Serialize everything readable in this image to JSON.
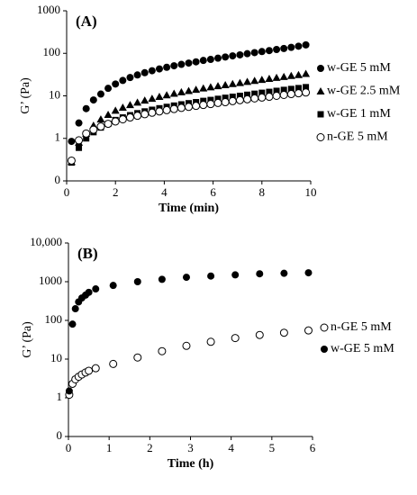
{
  "chart_data": [
    {
      "type": "scatter",
      "panel_label": "(A)",
      "xlabel": "Time (min)",
      "ylabel": "G’ (Pa)",
      "log_y": true,
      "xlim": [
        0,
        10
      ],
      "xticks": [
        0,
        2,
        4,
        6,
        8,
        10
      ],
      "ylim": [
        0.1,
        1000
      ],
      "yticks": [
        {
          "value": 0.1,
          "label": "0"
        },
        1,
        10,
        100,
        1000
      ],
      "legend": "right",
      "x": [
        0.2,
        0.5,
        0.8,
        1.1,
        1.4,
        1.7,
        2.0,
        2.3,
        2.6,
        2.9,
        3.2,
        3.5,
        3.8,
        4.1,
        4.4,
        4.7,
        5.0,
        5.3,
        5.6,
        5.9,
        6.2,
        6.5,
        6.8,
        7.1,
        7.4,
        7.7,
        8.0,
        8.3,
        8.6,
        8.9,
        9.2,
        9.5,
        9.8
      ],
      "series": [
        {
          "name": "w-GE 5 mM",
          "color": "#000000",
          "marker": "filled-circle",
          "values": [
            0.85,
            2.3,
            5,
            8,
            11,
            15,
            19,
            23,
            27,
            31,
            35,
            39,
            43,
            47,
            51,
            55,
            59,
            63,
            68,
            72,
            77,
            82,
            87,
            92,
            98,
            104,
            110,
            116,
            123,
            130,
            138,
            147,
            158
          ]
        },
        {
          "name": "w-GE 2.5 mM",
          "color": "#000000",
          "marker": "triangle",
          "values": [
            0.28,
            0.8,
            1.3,
            2,
            2.8,
            3.6,
            4.5,
            5.3,
            6.1,
            7,
            7.8,
            8.6,
            9.5,
            10.4,
            11.3,
            12.2,
            13.1,
            14,
            15,
            16,
            17,
            18,
            19.1,
            20.2,
            21.4,
            22.6,
            23.9,
            25.2,
            26.6,
            28,
            29.5,
            31,
            33
          ]
        },
        {
          "name": "w-GE 1 mM",
          "color": "#000000",
          "marker": "square",
          "values": [
            0.27,
            0.6,
            1.0,
            1.4,
            1.8,
            2.2,
            2.7,
            3.1,
            3.5,
            3.9,
            4.3,
            4.7,
            5.1,
            5.5,
            5.9,
            6.3,
            6.7,
            7.1,
            7.6,
            8.0,
            8.5,
            9,
            9.5,
            10,
            10.6,
            11.2,
            11.8,
            12.4,
            13.1,
            13.8,
            14.5,
            15.2,
            16
          ]
        },
        {
          "name": "n-GE 5 mM",
          "color": "#000000",
          "marker": "open-circle",
          "values": [
            0.3,
            0.9,
            1.3,
            1.6,
            1.9,
            2.2,
            2.5,
            2.8,
            3.1,
            3.4,
            3.7,
            4,
            4.3,
            4.6,
            4.9,
            5.2,
            5.5,
            5.8,
            6.1,
            6.4,
            6.8,
            7.1,
            7.5,
            7.9,
            8.3,
            8.7,
            9.1,
            9.5,
            10,
            10.5,
            11,
            11.5,
            12
          ]
        }
      ]
    },
    {
      "type": "scatter",
      "panel_label": "(B)",
      "xlabel": "Time (h)",
      "ylabel": "G’ (Pa)",
      "log_y": true,
      "xlim": [
        0,
        6
      ],
      "xticks": [
        0,
        1,
        2,
        3,
        4,
        5,
        6
      ],
      "ylim": [
        0.1,
        10000
      ],
      "yticks": [
        {
          "value": 0.1,
          "label": "0"
        },
        1,
        10,
        100,
        1000,
        {
          "value": 10000,
          "label": "10,000"
        }
      ],
      "legend": "right",
      "x": [
        0.02,
        0.1,
        0.17,
        0.25,
        0.33,
        0.42,
        0.5,
        0.67,
        1.1,
        1.7,
        2.3,
        2.9,
        3.5,
        4.1,
        4.7,
        5.3,
        5.9
      ],
      "series": [
        {
          "name": "n-GE 5 mM",
          "color": "#000000",
          "marker": "open-circle",
          "values": [
            1.2,
            2.3,
            3,
            3.5,
            4,
            4.5,
            5,
            5.8,
            7.5,
            11,
            16,
            22,
            28,
            35,
            42,
            48,
            55
          ]
        },
        {
          "name": "w-GE 5 mM",
          "color": "#000000",
          "marker": "filled-circle",
          "values": [
            1.5,
            80,
            200,
            300,
            380,
            450,
            530,
            650,
            800,
            1000,
            1150,
            1300,
            1400,
            1500,
            1600,
            1650,
            1700
          ]
        }
      ]
    }
  ]
}
